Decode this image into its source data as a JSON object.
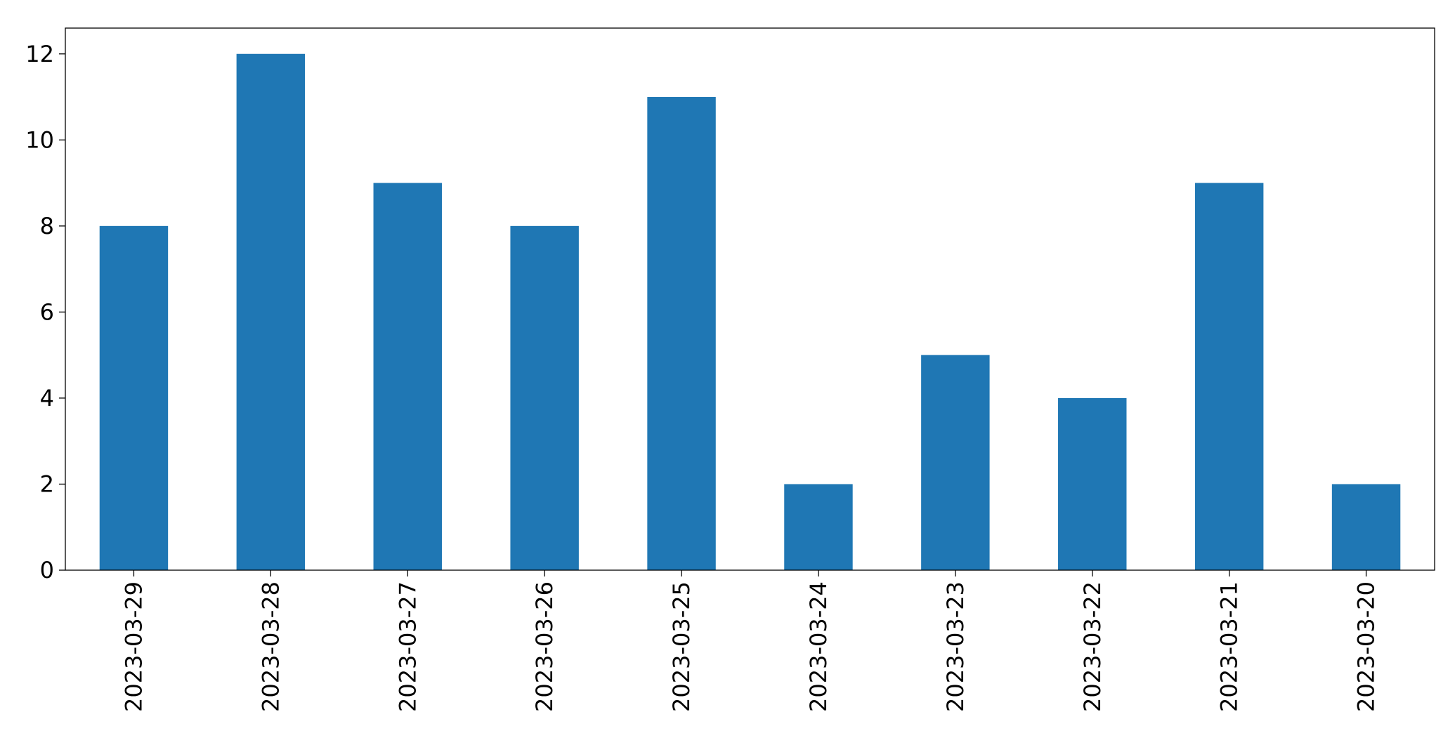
{
  "chart_data": {
    "type": "bar",
    "categories": [
      "2023-03-29",
      "2023-03-28",
      "2023-03-27",
      "2023-03-26",
      "2023-03-25",
      "2023-03-24",
      "2023-03-23",
      "2023-03-22",
      "2023-03-21",
      "2023-03-20"
    ],
    "values": [
      8,
      12,
      9,
      8,
      11,
      2,
      5,
      4,
      9,
      2
    ],
    "color": "#1f77b4",
    "ylim": [
      0,
      12.6
    ],
    "yticks": [
      0,
      2,
      4,
      6,
      8,
      10,
      12
    ],
    "grid": false
  }
}
